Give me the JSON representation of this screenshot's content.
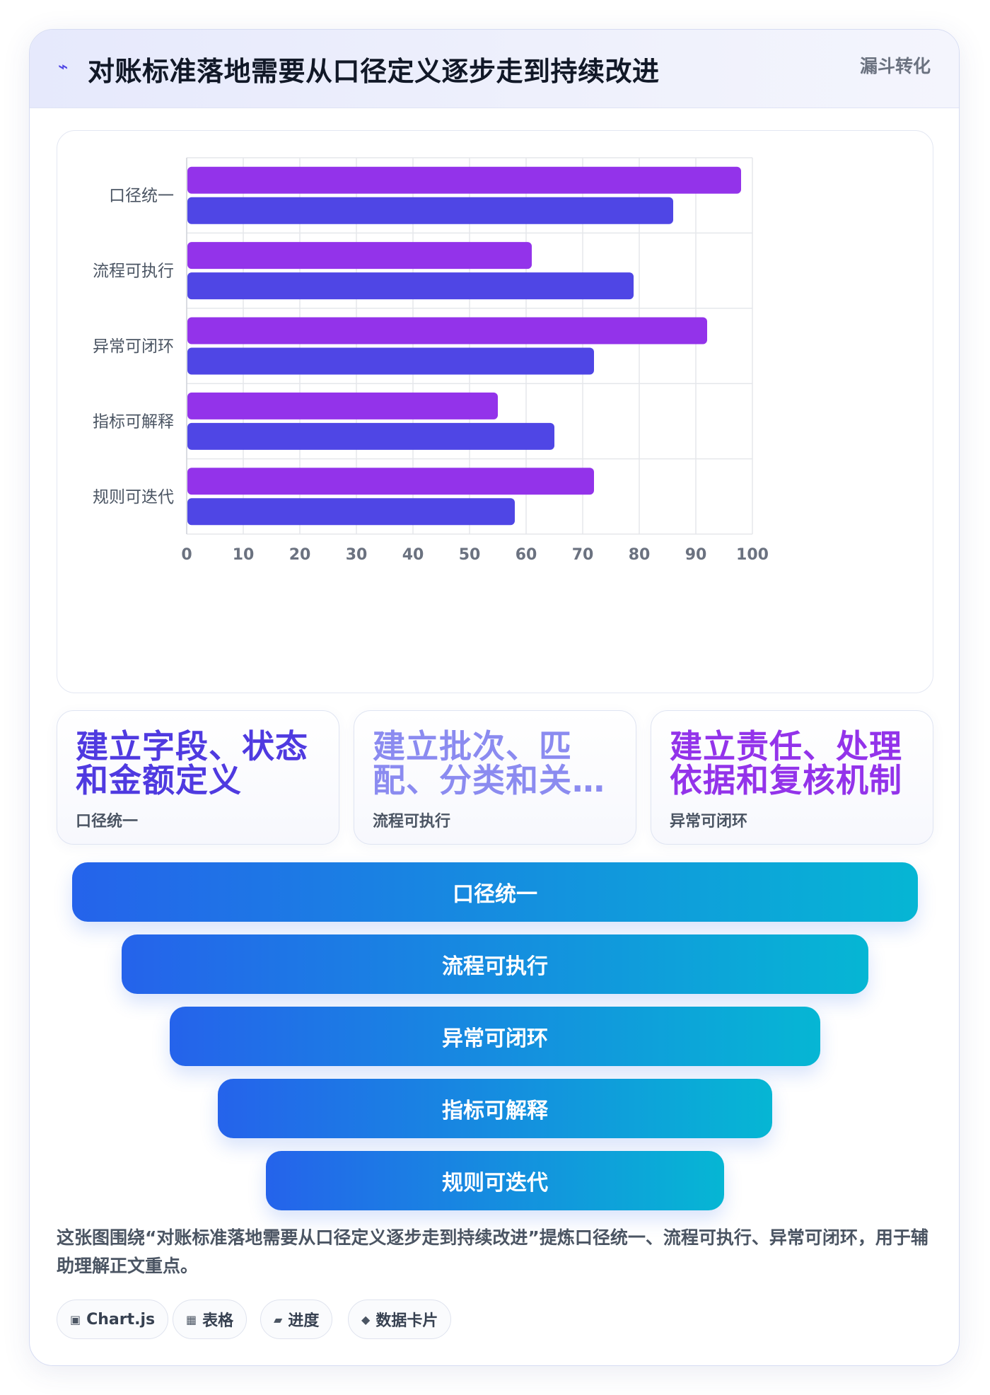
{
  "header": {
    "title": "对账标准落地需要从口径定义逐步走到持续改进",
    "tag": "漏斗转化"
  },
  "chart_data": {
    "type": "bar",
    "orientation": "horizontal",
    "categories": [
      "口径统一",
      "流程可执行",
      "异常可闭环",
      "指标可解释",
      "规则可迭代"
    ],
    "series": [
      {
        "values": [
          98,
          61,
          92,
          55,
          72
        ],
        "color": "#9333ea"
      },
      {
        "values": [
          86,
          79,
          72,
          65,
          58
        ],
        "color": "#4f46e5"
      }
    ],
    "xlim": [
      0,
      100
    ],
    "x_ticks": [
      "0",
      "10",
      "20",
      "30",
      "40",
      "50",
      "60",
      "70",
      "80",
      "90",
      "100"
    ],
    "grid": true
  },
  "kpis": [
    {
      "value": "建立字段、状态和金额定义",
      "label": "口径统一",
      "color": "#4f3ae0"
    },
    {
      "value": "建立批次、匹配、分类和关联规则",
      "label": "流程可执行",
      "color": "#8b8bf0"
    },
    {
      "value": "建立责任、处理依据和复核机制",
      "label": "异常可闭环",
      "color": "#9333ea"
    }
  ],
  "funnel": [
    {
      "label": "口径统一"
    },
    {
      "label": "流程可执行"
    },
    {
      "label": "异常可闭环"
    },
    {
      "label": "指标可解释"
    },
    {
      "label": "规则可迭代"
    }
  ],
  "description": "这张图围绕“对账标准落地需要从口径定义逐步走到持续改进”提炼口径统一、流程可执行、异常可闭环，用于辅助理解正文重点。",
  "chips": [
    {
      "icon": "▣",
      "label": "Chart.js"
    },
    {
      "icon": "▦",
      "label": "表格"
    },
    {
      "icon": "▰",
      "label": "进度"
    },
    {
      "icon": "◆",
      "label": "数据卡片"
    }
  ]
}
